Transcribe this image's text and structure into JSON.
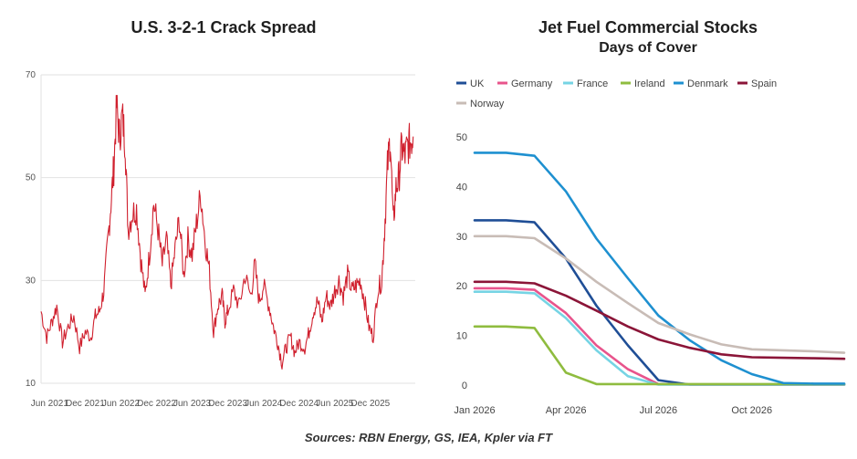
{
  "charts": {
    "crack": {
      "title": "U.S. 3-2-1 Crack Spread"
    },
    "jet": {
      "title": "Jet Fuel Commercial Stocks",
      "subtitle": "Days of Cover"
    }
  },
  "source": "Sources: RBN Energy, GS, IEA, Kpler via FT",
  "chart_data": [
    {
      "type": "line",
      "title": "U.S. 3-2-1 Crack Spread",
      "xlabel": "",
      "ylabel": "",
      "ylim": [
        10,
        70
      ],
      "yticks": [
        10,
        30,
        50,
        70
      ],
      "xlim": [
        2021.3,
        2026.55
      ],
      "xticks": [
        {
          "label": "Jun 2021",
          "x": 2021.42
        },
        {
          "label": "Dec 2021",
          "x": 2021.92
        },
        {
          "label": "Jun 2022",
          "x": 2022.42
        },
        {
          "label": "Dec 2022",
          "x": 2022.92
        },
        {
          "label": "Jun 2023",
          "x": 2023.42
        },
        {
          "label": "Dec 2023",
          "x": 2023.92
        },
        {
          "label": "Jun 2024",
          "x": 2024.42
        },
        {
          "label": "Dec 2024",
          "x": 2024.92
        },
        {
          "label": "Jun 2025",
          "x": 2025.42
        },
        {
          "label": "Dec 2025",
          "x": 2025.92
        }
      ],
      "grid": true,
      "legend": "none",
      "color": "#d0202e",
      "series": [
        {
          "x": [
            2021.3,
            2021.38,
            2021.45,
            2021.52,
            2021.6,
            2021.68,
            2021.76,
            2021.84,
            2021.92,
            2022.0,
            2022.06,
            2022.12,
            2022.18,
            2022.24,
            2022.28,
            2022.32,
            2022.36,
            2022.4,
            2022.44,
            2022.48,
            2022.52,
            2022.58,
            2022.64,
            2022.7,
            2022.76,
            2022.82,
            2022.88,
            2022.94,
            2023.0,
            2023.06,
            2023.12,
            2023.18,
            2023.24,
            2023.3,
            2023.36,
            2023.42,
            2023.48,
            2023.54,
            2023.6,
            2023.66,
            2023.72,
            2023.78,
            2023.84,
            2023.88,
            2023.92,
            2024.0,
            2024.08,
            2024.16,
            2024.24,
            2024.3,
            2024.36,
            2024.42,
            2024.5,
            2024.56,
            2024.62,
            2024.68,
            2024.74,
            2024.8,
            2024.86,
            2024.92,
            2025.0,
            2025.06,
            2025.12,
            2025.18,
            2025.24,
            2025.3,
            2025.36,
            2025.42,
            2025.48,
            2025.54,
            2025.6,
            2025.66,
            2025.72,
            2025.78,
            2025.84,
            2025.9,
            2025.96,
            2026.02,
            2026.08,
            2026.12,
            2026.16,
            2026.2,
            2026.24,
            2026.28,
            2026.32,
            2026.36,
            2026.4,
            2026.44,
            2026.48,
            2026.52
          ],
          "y": [
            24,
            19,
            22,
            25,
            18,
            21,
            23,
            17,
            20,
            19,
            23,
            24,
            28,
            38,
            45,
            52,
            64,
            58,
            62,
            57,
            40,
            43,
            44,
            34,
            27,
            35,
            45,
            40,
            33,
            38,
            29,
            36,
            42,
            31,
            38,
            35,
            41,
            47,
            38,
            32,
            20,
            25,
            27,
            22,
            24,
            28,
            25,
            31,
            27,
            33,
            26,
            29,
            25,
            21,
            18,
            14,
            17,
            19,
            16,
            18,
            17,
            20,
            24,
            26,
            22,
            27,
            25,
            28,
            30,
            27,
            31,
            28,
            29,
            30,
            26,
            21,
            19,
            28,
            30,
            40,
            52,
            58,
            41,
            48,
            50,
            56,
            54,
            56,
            57,
            58
          ]
        }
      ]
    },
    {
      "type": "line",
      "title": "Jet Fuel Commercial Stocks",
      "subtitle": "Days of Cover",
      "xlabel": "",
      "ylabel": "",
      "ylim": [
        0,
        50
      ],
      "yticks": [
        0,
        10,
        20,
        30,
        40,
        50
      ],
      "xlim": [
        "2026-01-01",
        "2026-12-31"
      ],
      "xticks": [
        "Jan 2026",
        "Apr 2026",
        "Jul 2026",
        "Oct 2026"
      ],
      "grid": false,
      "legend": "top",
      "x": [
        "2026-01-01",
        "2026-02-01",
        "2026-03-01",
        "2026-04-01",
        "2026-05-01",
        "2026-06-01",
        "2026-07-01",
        "2026-08-01",
        "2026-09-01",
        "2026-10-01",
        "2026-11-01",
        "2026-12-01",
        "2026-12-31"
      ],
      "series": [
        {
          "name": "UK",
          "color": "#1f4e96",
          "values": [
            33.2,
            33.2,
            32.8,
            25.5,
            16.0,
            8.0,
            1.0,
            0.1,
            0.1,
            0.1,
            0.1,
            0.1,
            0.1
          ]
        },
        {
          "name": "Germany",
          "color": "#e8548c",
          "values": [
            19.5,
            19.5,
            19.2,
            14.5,
            8.0,
            3.2,
            0.2,
            0.1,
            0.1,
            0.1,
            0.1,
            0.1,
            0.1
          ]
        },
        {
          "name": "France",
          "color": "#76d4e4",
          "values": [
            18.8,
            18.8,
            18.5,
            13.5,
            7.0,
            1.8,
            0.1,
            0.1,
            0.1,
            0.1,
            0.1,
            0.1,
            0.1
          ]
        },
        {
          "name": "Ireland",
          "color": "#8fbc3f",
          "values": [
            11.8,
            11.8,
            11.5,
            2.5,
            0.2,
            0.2,
            0.2,
            0.2,
            0.2,
            0.2,
            0.2,
            0.2,
            0.2
          ]
        },
        {
          "name": "Denmark",
          "color": "#1e90d0",
          "values": [
            46.8,
            46.8,
            46.2,
            39.0,
            29.5,
            21.5,
            14.0,
            9.0,
            5.0,
            2.2,
            0.4,
            0.3,
            0.3
          ]
        },
        {
          "name": "Spain",
          "color": "#8b1538",
          "values": [
            20.8,
            20.8,
            20.5,
            18.0,
            15.0,
            11.8,
            9.2,
            7.5,
            6.2,
            5.6,
            5.5,
            5.4,
            5.3
          ]
        },
        {
          "name": "Norway",
          "color": "#c8bcb6",
          "values": [
            30.0,
            30.0,
            29.6,
            25.5,
            20.8,
            16.5,
            12.5,
            10.2,
            8.2,
            7.2,
            7.0,
            6.8,
            6.5
          ]
        }
      ]
    }
  ]
}
